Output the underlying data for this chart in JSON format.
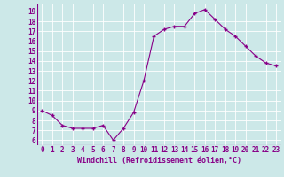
{
  "x": [
    0,
    1,
    2,
    3,
    4,
    5,
    6,
    7,
    8,
    9,
    10,
    11,
    12,
    13,
    14,
    15,
    16,
    17,
    18,
    19,
    20,
    21,
    22,
    23
  ],
  "y": [
    9.0,
    8.5,
    7.5,
    7.2,
    7.2,
    7.2,
    7.5,
    6.0,
    7.2,
    8.8,
    12.0,
    16.5,
    17.2,
    17.5,
    17.5,
    18.8,
    19.2,
    18.2,
    17.2,
    16.5,
    15.5,
    14.5,
    13.8,
    13.5
  ],
  "line_color": "#880088",
  "marker": "+",
  "marker_size": 3.5,
  "marker_lw": 1.0,
  "bg_color": "#cce8e8",
  "grid_color": "#ffffff",
  "ylabel_ticks": [
    6,
    7,
    8,
    9,
    10,
    11,
    12,
    13,
    14,
    15,
    16,
    17,
    18,
    19
  ],
  "xlabel": "Windchill (Refroidissement éolien,°C)",
  "ylim": [
    5.5,
    19.8
  ],
  "xlim": [
    -0.5,
    23.5
  ],
  "xlabel_fontsize": 6.0,
  "tick_fontsize": 5.5,
  "linewidth": 0.8
}
